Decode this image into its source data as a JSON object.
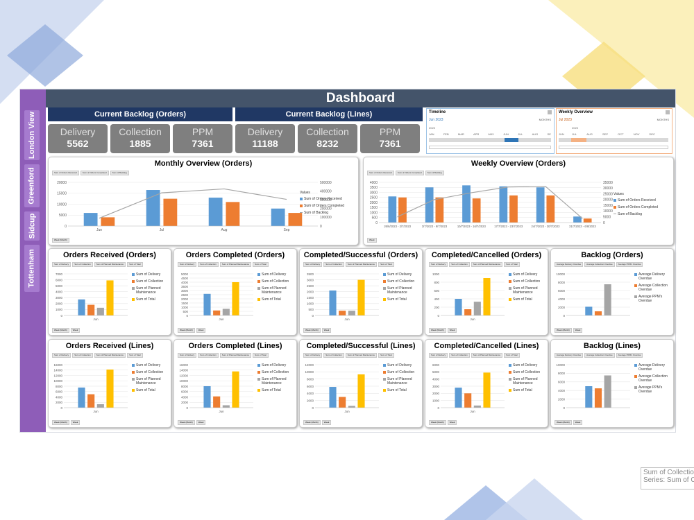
{
  "colors": {
    "blue": "#5b9bd5",
    "orange": "#ed7d31",
    "gray": "#a5a5a5",
    "gold": "#ffc000",
    "line": "#a5a5a5",
    "title": "#44546a",
    "sidebar": "#8e5db8"
  },
  "sidebar": {
    "items": [
      {
        "label": "London View"
      },
      {
        "label": "Greenford"
      },
      {
        "label": "Sidcup"
      },
      {
        "label": "Tottenham"
      }
    ]
  },
  "header": {
    "title": "Dashboard"
  },
  "backlog_orders": {
    "title": "Current Backlog (Orders)",
    "kpis": [
      {
        "label": "Delivery",
        "value": "5562"
      },
      {
        "label": "Collection",
        "value": "1885"
      },
      {
        "label": "PPM",
        "value": "7361"
      }
    ]
  },
  "backlog_lines": {
    "title": "Current Backlog (Lines)",
    "kpis": [
      {
        "label": "Delivery",
        "value": "11188"
      },
      {
        "label": "Collection",
        "value": "8232"
      },
      {
        "label": "PPM",
        "value": "7361"
      }
    ]
  },
  "timeline1": {
    "title": "Timeline",
    "period": "Jun 2023",
    "mode": "MONTHS",
    "year": "2023",
    "months": [
      "JAN",
      "FEB",
      "MAR",
      "APR",
      "MAY",
      "JUN",
      "JUL",
      "AUG",
      "SE"
    ]
  },
  "timeline2": {
    "title": "Weekly Overview",
    "period": "Jul 2023",
    "mode": "MONTHS",
    "year": "2023",
    "months": [
      "JUL",
      "AUG",
      "SEP",
      "OCT",
      "NOV",
      "DEC"
    ],
    "partial": "JUN"
  },
  "tooltip": {
    "line1": "Sum of Collectio",
    "line2": "Series: Sum of Co"
  },
  "panels": {
    "monthly": {
      "title": "Monthly Overview (Orders)",
      "buttons": [
        "Sum of Orders Received",
        "Sum of Orders Completed",
        "Sum of Backlog"
      ],
      "legend_title": "Values",
      "filters": [
        "Week (Month)"
      ]
    },
    "weekly": {
      "title": "Weekly Overview (Orders)",
      "buttons": [
        "Sum of Orders Received",
        "Sum of Orders Completed",
        "Sum of Backlog"
      ],
      "legend_title": "Values",
      "filters": [
        "Week"
      ]
    },
    "orr": {
      "title": "Orders Received (Orders)"
    },
    "oco": {
      "title": "Orders Completed (Orders)"
    },
    "csr": {
      "title": "Completed/Successful (Orders)"
    },
    "ccr": {
      "title": "Completed/Cancelled (Orders)"
    },
    "blo": {
      "title": "Backlog (Orders)"
    },
    "orl": {
      "title": "Orders Received (Lines)"
    },
    "ocl": {
      "title": "Orders Completed (Lines)"
    },
    "csl": {
      "title": "Completed/Successful (Lines)"
    },
    "ccl": {
      "title": "Completed/Cancelled (Lines)"
    },
    "bll": {
      "title": "Backlog (Lines)"
    }
  },
  "legends": {
    "four": [
      "Sum of Delivery",
      "Sum of Collection",
      "Sum of Planned Maintenance",
      "Sum of Total"
    ],
    "backlog": [
      "Average Delivery Overdue",
      "Average Collection Overdue",
      "Average PPM's Overdue"
    ],
    "monthly": [
      "Sum of Orders Received",
      "Sum of Orders Completed",
      "Sum of Backlog"
    ],
    "weekly": [
      "Sum of Orders Received",
      "Sum of Orders Completed",
      "Sum of Backlog"
    ]
  },
  "small_buttons": {
    "four": [
      "Sum of Delivery",
      "Sum of Collection",
      "Sum of Planned Maintenance",
      "Sum of Total"
    ],
    "backlog": [
      "Average Delivery Overdue",
      "Average Collection Overdue",
      "Average PPM's Overdue"
    ],
    "filters": [
      "Week (Month)",
      "Week"
    ]
  },
  "chart_data": [
    {
      "id": "monthly",
      "type": "bar",
      "title": "Monthly Overview (Orders)",
      "categories": [
        "Jun",
        "Jul",
        "Aug",
        "Sep"
      ],
      "ylim": [
        0,
        20000
      ],
      "yticks": [
        0,
        5000,
        10000,
        15000,
        20000
      ],
      "y2lim": [
        0,
        500000
      ],
      "y2ticks": [
        0,
        100000,
        200000,
        300000,
        400000,
        500000
      ],
      "series": [
        {
          "name": "Sum of Orders Received",
          "values": [
            6000,
            16500,
            13000,
            8000
          ]
        },
        {
          "name": "Sum of Orders Completed",
          "values": [
            4000,
            12500,
            11000,
            6000
          ]
        }
      ],
      "line": {
        "name": "Sum of Backlog",
        "values": [
          90000,
          380000,
          425000,
          305000
        ]
      }
    },
    {
      "id": "weekly",
      "type": "bar",
      "title": "Weekly Overview (Orders)",
      "categories": [
        "26/6/2023 - 2/7/2023",
        "3/7/2023 - 9/7/2023",
        "10/7/2023 - 16/7/2023",
        "17/7/2023 - 23/7/2023",
        "24/7/2023 - 30/7/2023",
        "31/7/2023 - 6/8/2023"
      ],
      "ylim": [
        0,
        4000
      ],
      "yticks": [
        0,
        500,
        1000,
        1500,
        2000,
        2500,
        3000,
        3500,
        4000
      ],
      "y2lim": [
        0,
        35000
      ],
      "y2ticks": [
        0,
        5000,
        10000,
        15000,
        20000,
        25000,
        30000,
        35000
      ],
      "series": [
        {
          "name": "Sum of Orders Received",
          "values": [
            2600,
            3500,
            3700,
            3600,
            3500,
            600
          ]
        },
        {
          "name": "Sum of Orders Completed",
          "values": [
            2500,
            2500,
            2400,
            2700,
            2700,
            400
          ]
        }
      ],
      "line": {
        "name": "Sum of Backlog",
        "values": [
          5000,
          20000,
          26000,
          31000,
          31500,
          3500
        ]
      }
    },
    {
      "id": "orr",
      "type": "bar",
      "categories": [
        "Jun"
      ],
      "ylim": [
        0,
        7000
      ],
      "yticks": [
        0,
        1000,
        2000,
        3000,
        4000,
        5000,
        6000,
        7000
      ],
      "series": [
        {
          "name": "Sum of Delivery",
          "values": [
            2700
          ]
        },
        {
          "name": "Sum of Collection",
          "values": [
            1800
          ]
        },
        {
          "name": "Sum of Planned Maintenance",
          "values": [
            1300
          ]
        },
        {
          "name": "Sum of Total",
          "values": [
            5900
          ]
        }
      ]
    },
    {
      "id": "oco",
      "type": "bar",
      "categories": [
        "Jun"
      ],
      "ylim": [
        0,
        5000
      ],
      "yticks": [
        0,
        500,
        1000,
        1500,
        2000,
        2500,
        3000,
        3500,
        4000,
        4500,
        5000
      ],
      "series": [
        {
          "name": "Sum of Delivery",
          "values": [
            2600
          ]
        },
        {
          "name": "Sum of Collection",
          "values": [
            600
          ]
        },
        {
          "name": "Sum of Planned Maintenance",
          "values": [
            800
          ]
        },
        {
          "name": "Sum of Total",
          "values": [
            4000
          ]
        }
      ]
    },
    {
      "id": "csr",
      "type": "bar",
      "categories": [
        "Jun"
      ],
      "ylim": [
        0,
        3500
      ],
      "yticks": [
        0,
        500,
        1000,
        1500,
        2000,
        2500,
        3000,
        3500
      ],
      "series": [
        {
          "name": "Sum of Delivery",
          "values": [
            2100
          ]
        },
        {
          "name": "Sum of Collection",
          "values": [
            400
          ]
        },
        {
          "name": "Sum of Planned Maintenance",
          "values": [
            400
          ]
        },
        {
          "name": "Sum of Total",
          "values": [
            3000
          ]
        }
      ]
    },
    {
      "id": "ccr",
      "type": "bar",
      "categories": [
        "Jun"
      ],
      "ylim": [
        0,
        1000
      ],
      "yticks": [
        0,
        200,
        400,
        600,
        800,
        1000
      ],
      "series": [
        {
          "name": "Sum of Delivery",
          "values": [
            400
          ]
        },
        {
          "name": "Sum of Collection",
          "values": [
            150
          ]
        },
        {
          "name": "Sum of Planned Maintenance",
          "values": [
            330
          ]
        },
        {
          "name": "Sum of Total",
          "values": [
            900
          ]
        }
      ]
    },
    {
      "id": "blo",
      "type": "bar",
      "categories": [
        ""
      ],
      "ylim": [
        0,
        10000
      ],
      "yticks": [
        0,
        2000,
        4000,
        6000,
        8000,
        10000
      ],
      "series": [
        {
          "name": "Average Delivery Overdue",
          "values": [
            2100
          ]
        },
        {
          "name": "Average Collection Overdue",
          "values": [
            1000
          ]
        },
        {
          "name": "Average PPM's Overdue",
          "values": [
            7500
          ]
        }
      ]
    },
    {
      "id": "orl",
      "type": "bar",
      "categories": [
        "Jun"
      ],
      "ylim": [
        0,
        16000
      ],
      "yticks": [
        0,
        2000,
        4000,
        6000,
        8000,
        10000,
        12000,
        14000,
        16000
      ],
      "series": [
        {
          "name": "Sum of Delivery",
          "values": [
            7500
          ]
        },
        {
          "name": "Sum of Collection",
          "values": [
            5000
          ]
        },
        {
          "name": "Sum of Planned Maintenance",
          "values": [
            1300
          ]
        },
        {
          "name": "Sum of Total",
          "values": [
            14200
          ]
        }
      ]
    },
    {
      "id": "ocl",
      "type": "bar",
      "categories": [
        "Jun"
      ],
      "ylim": [
        0,
        16000
      ],
      "yticks": [
        0,
        2000,
        4000,
        6000,
        8000,
        10000,
        12000,
        14000,
        16000
      ],
      "series": [
        {
          "name": "Sum of Delivery",
          "values": [
            8000
          ]
        },
        {
          "name": "Sum of Collection",
          "values": [
            4200
          ]
        },
        {
          "name": "Sum of Planned Maintenance",
          "values": [
            900
          ]
        },
        {
          "name": "Sum of Total",
          "values": [
            13500
          ]
        }
      ]
    },
    {
      "id": "csl",
      "type": "bar",
      "categories": [
        "Jun"
      ],
      "ylim": [
        0,
        12000
      ],
      "yticks": [
        0,
        2000,
        4000,
        6000,
        8000,
        10000,
        12000
      ],
      "series": [
        {
          "name": "Sum of Delivery",
          "values": [
            5800
          ]
        },
        {
          "name": "Sum of Collection",
          "values": [
            3000
          ]
        },
        {
          "name": "Sum of Planned Maintenance",
          "values": [
            500
          ]
        },
        {
          "name": "Sum of Total",
          "values": [
            9300
          ]
        }
      ]
    },
    {
      "id": "ccl",
      "type": "bar",
      "categories": [
        "Jun"
      ],
      "ylim": [
        0,
        6000
      ],
      "yticks": [
        0,
        1000,
        2000,
        3000,
        4000,
        5000,
        6000
      ],
      "series": [
        {
          "name": "Sum of Delivery",
          "values": [
            2800
          ]
        },
        {
          "name": "Sum of Collection",
          "values": [
            2000
          ]
        },
        {
          "name": "Sum of Planned Maintenance",
          "values": [
            300
          ]
        },
        {
          "name": "Sum of Total",
          "values": [
            4900
          ]
        }
      ]
    },
    {
      "id": "bll",
      "type": "bar",
      "categories": [
        ""
      ],
      "ylim": [
        0,
        10000
      ],
      "yticks": [
        0,
        2000,
        4000,
        6000,
        8000,
        10000
      ],
      "series": [
        {
          "name": "Average Delivery Overdue",
          "values": [
            5000
          ]
        },
        {
          "name": "Average Collection Overdue",
          "values": [
            4500
          ]
        },
        {
          "name": "Average PPM's Overdue",
          "values": [
            7500
          ]
        }
      ]
    }
  ]
}
